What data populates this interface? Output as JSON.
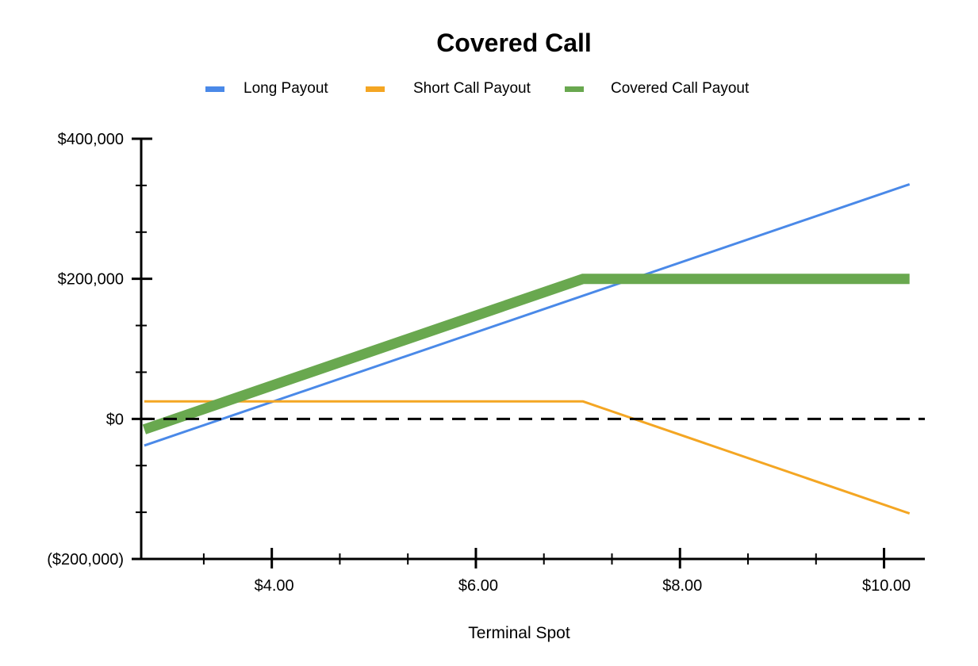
{
  "chart_data": {
    "type": "line",
    "title": "Covered Call",
    "xlabel": "Terminal Spot",
    "ylabel": "",
    "xlim": [
      2.72,
      10.4
    ],
    "ylim": [
      -200000,
      400000
    ],
    "x_ticks": [
      4,
      6,
      8,
      10
    ],
    "x_tick_labels": [
      "$4.00",
      "$6.00",
      "$8.00",
      "$10.00"
    ],
    "y_ticks": [
      -200000,
      0,
      200000,
      400000
    ],
    "y_tick_labels": [
      "($200,000)",
      "$0",
      "$200,000",
      "$400,000"
    ],
    "x_minor_step": 0.666667,
    "y_minor_step": 66667,
    "zero_line": {
      "style": "dashed",
      "color": "#000000"
    },
    "legend_position": "top",
    "series": [
      {
        "name": "Long Payout",
        "color": "#4a89e8",
        "width": 3,
        "x": [
          2.75,
          10.25
        ],
        "y": [
          -38000,
          335000
        ]
      },
      {
        "name": "Short Call Payout",
        "color": "#f4a623",
        "width": 3,
        "x": [
          2.75,
          7.05,
          10.25
        ],
        "y": [
          25000,
          25000,
          -135000
        ]
      },
      {
        "name": "Covered Call Payout",
        "color": "#69a84f",
        "width": 13,
        "x": [
          2.75,
          7.05,
          10.25
        ],
        "y": [
          -15000,
          200000,
          200000
        ]
      }
    ]
  }
}
